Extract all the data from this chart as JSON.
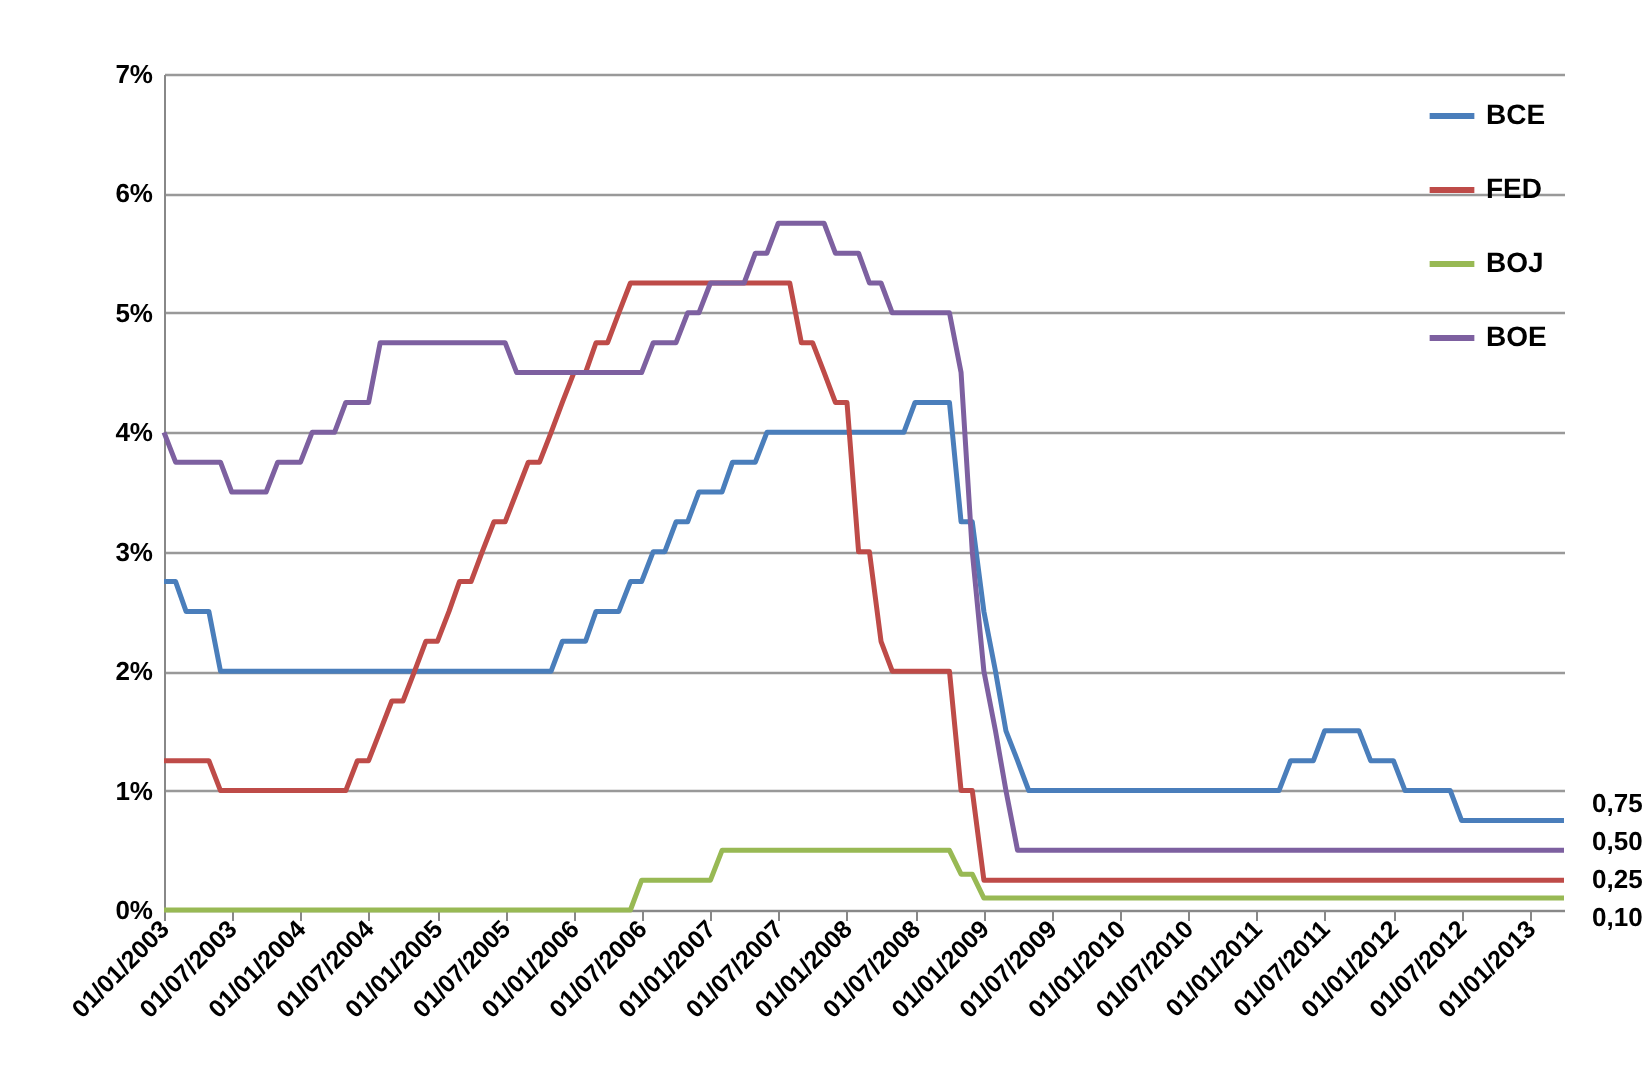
{
  "chart_data": {
    "type": "line",
    "xlim": [
      "2003-01",
      "2013-04"
    ],
    "xticks": [
      {
        "value": "2003-01-01",
        "label": "01/01/2003"
      },
      {
        "value": "2003-07-01",
        "label": "01/07/2003"
      },
      {
        "value": "2004-01-01",
        "label": "01/01/2004"
      },
      {
        "value": "2004-07-01",
        "label": "01/07/2004"
      },
      {
        "value": "2005-01-01",
        "label": "01/01/2005"
      },
      {
        "value": "2005-07-01",
        "label": "01/07/2005"
      },
      {
        "value": "2006-01-01",
        "label": "01/01/2006"
      },
      {
        "value": "2006-07-01",
        "label": "01/07/2006"
      },
      {
        "value": "2007-01-01",
        "label": "01/01/2007"
      },
      {
        "value": "2007-07-01",
        "label": "01/07/2007"
      },
      {
        "value": "2008-01-01",
        "label": "01/01/2008"
      },
      {
        "value": "2008-07-01",
        "label": "01/07/2008"
      },
      {
        "value": "2009-01-01",
        "label": "01/01/2009"
      },
      {
        "value": "2009-07-01",
        "label": "01/07/2009"
      },
      {
        "value": "2010-01-01",
        "label": "01/01/2010"
      },
      {
        "value": "2010-07-01",
        "label": "01/07/2010"
      },
      {
        "value": "2011-01-01",
        "label": "01/01/2011"
      },
      {
        "value": "2011-07-01",
        "label": "01/07/2011"
      },
      {
        "value": "2012-01-01",
        "label": "01/01/2012"
      },
      {
        "value": "2012-07-01",
        "label": "01/07/2012"
      },
      {
        "value": "2013-01-01",
        "label": "01/01/2013"
      }
    ],
    "ylim": [
      0,
      7
    ],
    "yticks": [
      {
        "value": 0,
        "label": "0%"
      },
      {
        "value": 1,
        "label": "1%"
      },
      {
        "value": 2,
        "label": "2%"
      },
      {
        "value": 3,
        "label": "3%"
      },
      {
        "value": 4,
        "label": "4%"
      },
      {
        "value": 5,
        "label": "5%"
      },
      {
        "value": 6,
        "label": "6%"
      },
      {
        "value": 7,
        "label": "7%"
      }
    ],
    "grid": "y",
    "legend": "top right",
    "line_style": "solid",
    "marker": "none",
    "series": [
      {
        "name": "BCE",
        "color": "#4a7ebb",
        "x": [
          "2003-01",
          "2003-02",
          "2003-03",
          "2003-05",
          "2003-06",
          "2005-11",
          "2005-12",
          "2006-02",
          "2006-03",
          "2006-05",
          "2006-06",
          "2006-07",
          "2006-08",
          "2006-09",
          "2006-10",
          "2006-11",
          "2006-12",
          "2007-02",
          "2007-03",
          "2007-05",
          "2007-06",
          "2008-06",
          "2008-07",
          "2008-10",
          "2008-11",
          "2008-12",
          "2009-01",
          "2009-02",
          "2009-03",
          "2009-04",
          "2009-05",
          "2011-03",
          "2011-04",
          "2011-06",
          "2011-07",
          "2011-10",
          "2011-11",
          "2012-01",
          "2012-02",
          "2012-06",
          "2012-07",
          "2013-04"
        ],
        "values": [
          2.75,
          2.75,
          2.5,
          2.5,
          2.0,
          2.0,
          2.25,
          2.25,
          2.5,
          2.5,
          2.75,
          2.75,
          3.0,
          3.0,
          3.25,
          3.25,
          3.5,
          3.5,
          3.75,
          3.75,
          4.0,
          4.0,
          4.25,
          4.25,
          3.25,
          3.25,
          2.5,
          2.0,
          1.5,
          1.25,
          1.0,
          1.0,
          1.25,
          1.25,
          1.5,
          1.5,
          1.25,
          1.25,
          1.0,
          1.0,
          0.75,
          0.75
        ]
      },
      {
        "name": "FED",
        "color": "#be4b48",
        "x": [
          "2003-01",
          "2003-05",
          "2003-06",
          "2004-05",
          "2004-06",
          "2004-07",
          "2004-08",
          "2004-09",
          "2004-10",
          "2004-11",
          "2004-12",
          "2005-01",
          "2005-02",
          "2005-03",
          "2005-04",
          "2005-05",
          "2005-06",
          "2005-07",
          "2005-08",
          "2005-09",
          "2005-10",
          "2005-11",
          "2005-12",
          "2006-01",
          "2006-02",
          "2006-03",
          "2006-04",
          "2006-05",
          "2006-06",
          "2007-08",
          "2007-09",
          "2007-10",
          "2007-11",
          "2007-12",
          "2008-01",
          "2008-02",
          "2008-03",
          "2008-04",
          "2008-05",
          "2008-10",
          "2008-11",
          "2008-12",
          "2009-01",
          "2013-04"
        ],
        "values": [
          1.25,
          1.25,
          1.0,
          1.0,
          1.25,
          1.25,
          1.5,
          1.75,
          1.75,
          2.0,
          2.25,
          2.25,
          2.5,
          2.75,
          2.75,
          3.0,
          3.25,
          3.25,
          3.5,
          3.75,
          3.75,
          4.0,
          4.25,
          4.5,
          4.5,
          4.75,
          4.75,
          5.0,
          5.25,
          5.25,
          4.75,
          4.75,
          4.5,
          4.25,
          4.25,
          3.0,
          3.0,
          2.25,
          2.0,
          2.0,
          1.0,
          1.0,
          0.25,
          0.25
        ]
      },
      {
        "name": "BOJ",
        "color": "#98b954",
        "x": [
          "2003-01",
          "2006-06",
          "2006-07",
          "2007-01",
          "2007-02",
          "2008-10",
          "2008-11",
          "2008-12",
          "2009-01",
          "2013-04"
        ],
        "values": [
          0,
          0,
          0.25,
          0.25,
          0.5,
          0.5,
          0.3,
          0.3,
          0.1,
          0.1
        ]
      },
      {
        "name": "BOE",
        "color": "#7d60a0",
        "x": [
          "2003-01",
          "2003-02",
          "2003-06",
          "2003-07",
          "2003-10",
          "2003-11",
          "2004-01",
          "2004-02",
          "2004-04",
          "2004-05",
          "2004-07",
          "2004-08",
          "2005-07",
          "2005-08",
          "2006-07",
          "2006-08",
          "2006-10",
          "2006-11",
          "2006-12",
          "2007-01",
          "2007-04",
          "2007-05",
          "2007-06",
          "2007-07",
          "2007-11",
          "2007-12",
          "2008-02",
          "2008-03",
          "2008-04",
          "2008-05",
          "2008-10",
          "2008-11",
          "2008-12",
          "2009-01",
          "2009-02",
          "2009-03",
          "2009-04",
          "2013-04"
        ],
        "values": [
          4.0,
          3.75,
          3.75,
          3.5,
          3.5,
          3.75,
          3.75,
          4.0,
          4.0,
          4.25,
          4.25,
          4.75,
          4.75,
          4.5,
          4.5,
          4.75,
          4.75,
          5.0,
          5.0,
          5.25,
          5.25,
          5.5,
          5.5,
          5.75,
          5.75,
          5.5,
          5.5,
          5.25,
          5.25,
          5.0,
          5.0,
          4.5,
          3.0,
          2.0,
          1.5,
          1.0,
          0.5,
          0.5
        ]
      }
    ],
    "annotations": [
      {
        "text": "0,75",
        "x": "2013-04",
        "y": 0.75
      },
      {
        "text": "0,50",
        "x": "2013-04",
        "y": 0.5
      },
      {
        "text": "0,25",
        "x": "2013-04",
        "y": 0.25
      },
      {
        "text": "0,10",
        "x": "2013-04",
        "y": 0.1
      }
    ]
  }
}
